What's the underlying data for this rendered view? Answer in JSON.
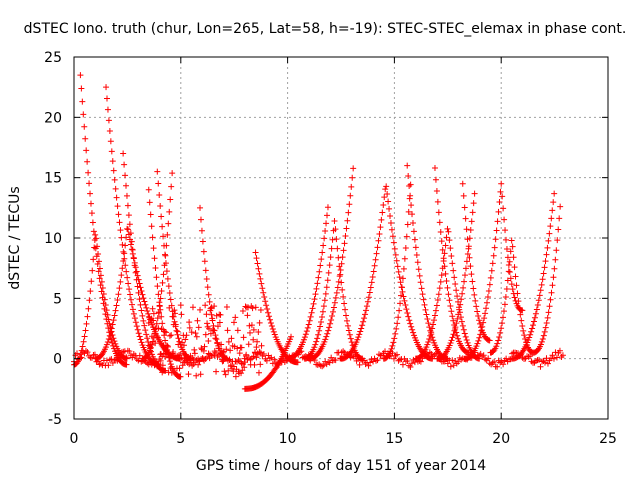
{
  "chart_data": {
    "type": "scatter",
    "title": "dSTEC Iono. truth (chur, Lon=265, Lat=58, h=-19): STEC-STEC_elemax in phase cont.",
    "xlabel": "GPS time / hours of day 151 of year 2014",
    "ylabel": "dSTEC  / TECUs",
    "xlim": [
      0,
      25
    ],
    "ylim": [
      -5,
      25
    ],
    "xticks": [
      "0",
      "5",
      "10",
      "15",
      "20",
      "25"
    ],
    "yticks": [
      "-5",
      "0",
      "5",
      "10",
      "15",
      "20",
      "25"
    ],
    "grid": true,
    "marker": "+",
    "colors": {
      "series": "#ff0000",
      "grid": "#a0a0a0",
      "axis": "#000000"
    },
    "satellite_arcs": [
      {
        "shape": "falling",
        "t0": 0.3,
        "t1": 2.5,
        "v0": 23.5,
        "v1": -0.5
      },
      {
        "shape": "falling",
        "t0": 1.5,
        "t1": 4.0,
        "v0": 22.5,
        "v1": -0.5
      },
      {
        "shape": "falling",
        "t0": 2.3,
        "t1": 4.3,
        "v0": 17.0,
        "v1": -1.0
      },
      {
        "shape": "falling",
        "t0": 3.9,
        "t1": 5.5,
        "v0": 15.5,
        "v1": 0.0
      },
      {
        "shape": "falling",
        "t0": 3.5,
        "t1": 5.0,
        "v0": 14.0,
        "v1": -1.5
      },
      {
        "shape": "falling",
        "t0": 5.9,
        "t1": 7.2,
        "v0": 12.5,
        "v1": 0.0
      },
      {
        "shape": "falling",
        "t0": 8.5,
        "t1": 10.5,
        "v0": 8.8,
        "v1": -0.3
      },
      {
        "shape": "falling",
        "t0": 15.6,
        "t1": 17.5,
        "v0": 16.0,
        "v1": 0.0
      },
      {
        "shape": "falling",
        "t0": 16.9,
        "t1": 18.5,
        "v0": 15.8,
        "v1": 0.5
      },
      {
        "shape": "falling",
        "t0": 18.2,
        "t1": 19.5,
        "v0": 14.5,
        "v1": 1.5
      },
      {
        "shape": "falling",
        "t0": 20.0,
        "t1": 21.0,
        "v0": 14.5,
        "v1": 4.0
      },
      {
        "shape": "peak",
        "t0": 0.0,
        "tp": 1.0,
        "t1": 2.5,
        "v0": -0.5,
        "vp": 10.5,
        "v1": 0.0
      },
      {
        "shape": "peak",
        "t0": 1.0,
        "tp": 2.5,
        "t1": 5.0,
        "v0": 0.0,
        "vp": 11.0,
        "v1": 0.0
      },
      {
        "shape": "peak",
        "t0": 10.8,
        "tp": 12.2,
        "t1": 13.5,
        "v0": 0.0,
        "vp": 11.5,
        "v1": 0.0
      },
      {
        "shape": "peak",
        "t0": 12.5,
        "tp": 14.6,
        "t1": 16.8,
        "v0": 0.0,
        "vp": 14.5,
        "v1": 0.0
      },
      {
        "shape": "peak",
        "t0": 16.0,
        "tp": 17.5,
        "t1": 19.0,
        "v0": 0.0,
        "vp": 11.0,
        "v1": 0.0
      },
      {
        "shape": "peak",
        "t0": 19.5,
        "tp": 20.5,
        "t1": 21.5,
        "v0": 0.5,
        "vp": 10.0,
        "v1": 0.5
      },
      {
        "shape": "rising",
        "t0": 3.2,
        "t1": 4.6,
        "v0": 0.0,
        "v1": 15.5
      },
      {
        "shape": "rising",
        "t0": 10.0,
        "t1": 11.9,
        "v0": 0.0,
        "v1": 12.7
      },
      {
        "shape": "rising",
        "t0": 11.0,
        "t1": 13.1,
        "v0": 0.0,
        "v1": 16.3
      },
      {
        "shape": "rising",
        "t0": 14.5,
        "t1": 15.8,
        "v0": 0.0,
        "v1": 15.5
      },
      {
        "shape": "rising",
        "t0": 17.0,
        "t1": 18.8,
        "v0": 0.0,
        "v1": 14.5
      },
      {
        "shape": "rising",
        "t0": 18.3,
        "t1": 20.0,
        "v0": 0.0,
        "v1": 14.5
      },
      {
        "shape": "rising",
        "t0": 20.5,
        "t1": 22.5,
        "v0": 0.0,
        "v1": 14.0
      },
      {
        "shape": "rising",
        "t0": 21.5,
        "t1": 22.8,
        "v0": 0.5,
        "v1": 13.5
      },
      {
        "shape": "rising",
        "t0": 8.0,
        "t1": 10.2,
        "v0": -2.5,
        "v1": 2.0
      }
    ],
    "noisy_band": {
      "t0": 3.5,
      "t1": 8.8,
      "center": 1.5,
      "spread": 3.0,
      "min": -3.3,
      "max": 6.0
    }
  }
}
